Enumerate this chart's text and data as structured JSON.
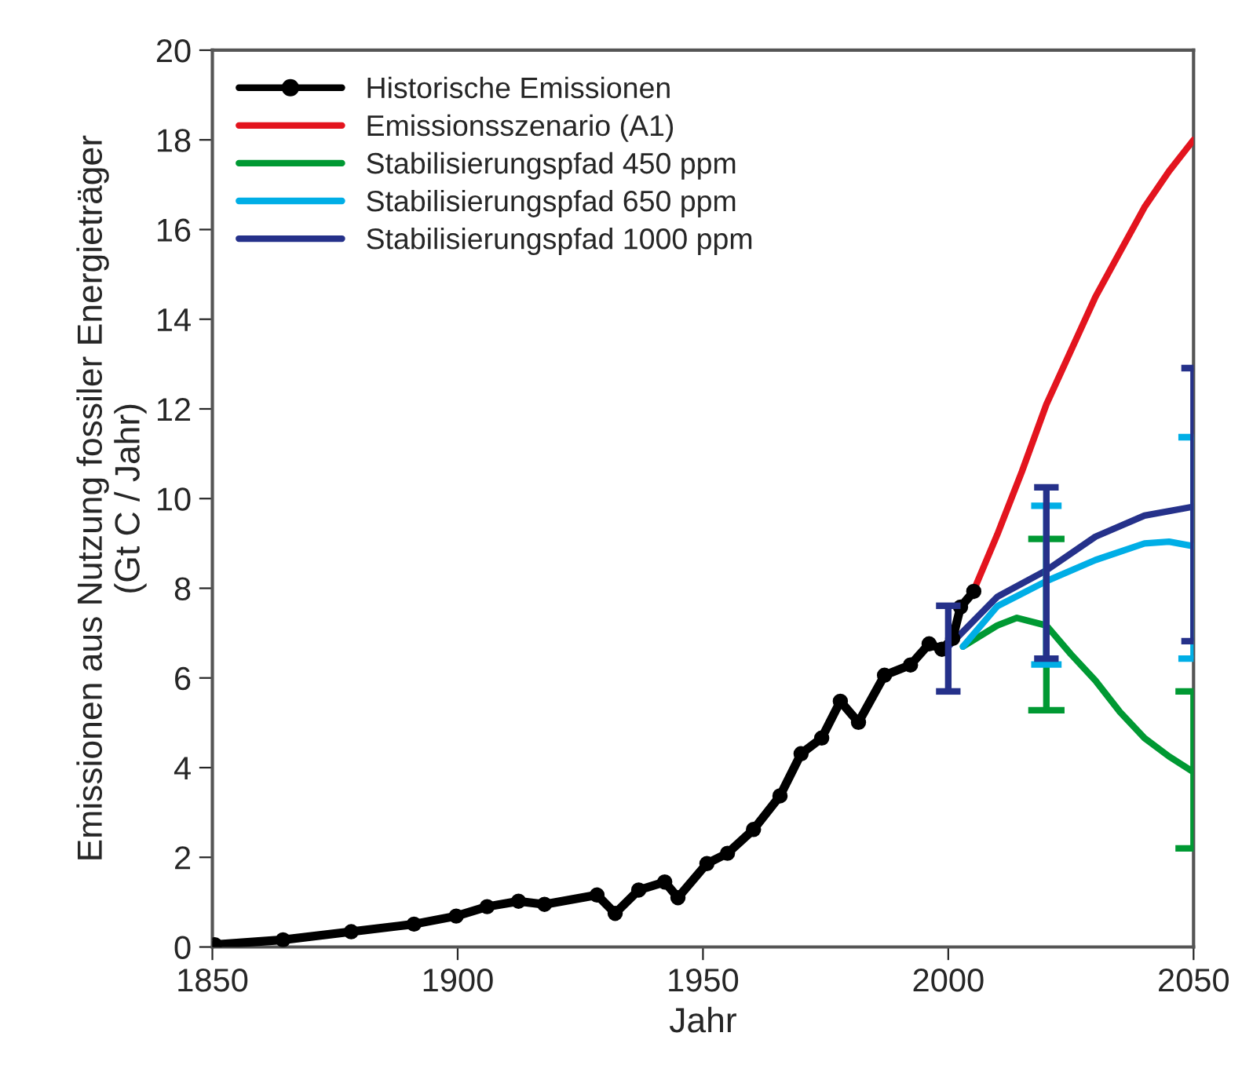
{
  "chart_data": {
    "type": "line",
    "xlabel": "Jahr",
    "ylabel": "Emissionen aus Nutzung fossiler Energieträger\n(Gt C / Jahr)",
    "xlim": [
      1850,
      2050
    ],
    "xticks": [
      1850,
      1900,
      1950,
      2000,
      2050
    ],
    "ylim": [
      0,
      20
    ],
    "yticks": [
      0,
      2,
      4,
      6,
      8,
      10,
      12,
      14,
      16,
      18,
      20
    ],
    "grid": false,
    "legend": "top left",
    "line_style": "solid",
    "series": [
      {
        "name": "Historische Emissionen",
        "color": "#000000",
        "marker": "circle",
        "x": [
          1850.5,
          1864.4,
          1878.3,
          1891.1,
          1899.7,
          1906,
          1912.4,
          1917.7,
          1928.4,
          1932.1,
          1936.9,
          1942.2,
          1944.9,
          1950.8,
          1955,
          1960.3,
          1965.7,
          1970,
          1974.2,
          1978,
          1981.7,
          1987,
          1992.3,
          1996.1,
          1998.7,
          2000.9,
          2002.5,
          2005.2
        ],
        "values": [
          0.05,
          0.16,
          0.34,
          0.51,
          0.69,
          0.9,
          1.02,
          0.95,
          1.16,
          0.75,
          1.27,
          1.45,
          1.1,
          1.86,
          2.09,
          2.62,
          3.37,
          4.31,
          4.66,
          5.48,
          5.01,
          6.06,
          6.29,
          6.76,
          6.64,
          6.88,
          7.58,
          7.93
        ]
      },
      {
        "name": "Emissionsszenario (A1)",
        "color": "#e3141e",
        "x": [
          2005,
          2010,
          2015,
          2020,
          2025,
          2030,
          2035,
          2040,
          2045,
          2050
        ],
        "values": [
          7.9,
          9.2,
          10.6,
          12.1,
          13.3,
          14.5,
          15.5,
          16.5,
          17.3,
          18.0
        ]
      },
      {
        "name": "Stabilisierungspfad 450 ppm",
        "color": "#009933",
        "x": [
          2003,
          2010,
          2014,
          2020,
          2025,
          2030,
          2035,
          2040,
          2045,
          2050
        ],
        "values": [
          6.7,
          7.17,
          7.34,
          7.17,
          6.53,
          5.94,
          5.24,
          4.66,
          4.25,
          3.9
        ],
        "errors": [
          null,
          null,
          null,
          [
            5.28,
            9.1
          ],
          null,
          null,
          null,
          null,
          null,
          [
            2.2,
            5.7
          ]
        ]
      },
      {
        "name": "Stabilisierungspfad 650 ppm",
        "color": "#00aee6",
        "x": [
          2003,
          2010,
          2020,
          2030,
          2040,
          2045,
          2050
        ],
        "values": [
          6.7,
          7.6,
          8.16,
          8.63,
          9.0,
          9.04,
          8.94
        ],
        "errors": [
          null,
          null,
          [
            6.3,
            9.84
          ],
          null,
          null,
          null,
          [
            6.43,
            11.37
          ]
        ]
      },
      {
        "name": "Stabilisierungspfad 1000 ppm",
        "color": "#25318a",
        "x": [
          2000,
          2010,
          2020,
          2030,
          2040,
          2050
        ],
        "values": [
          6.7,
          7.81,
          8.4,
          9.15,
          9.62,
          9.82
        ],
        "errors": [
          [
            5.7,
            7.61
          ],
          null,
          [
            6.43,
            10.25
          ],
          null,
          null,
          [
            6.82,
            12.91
          ]
        ]
      }
    ]
  }
}
